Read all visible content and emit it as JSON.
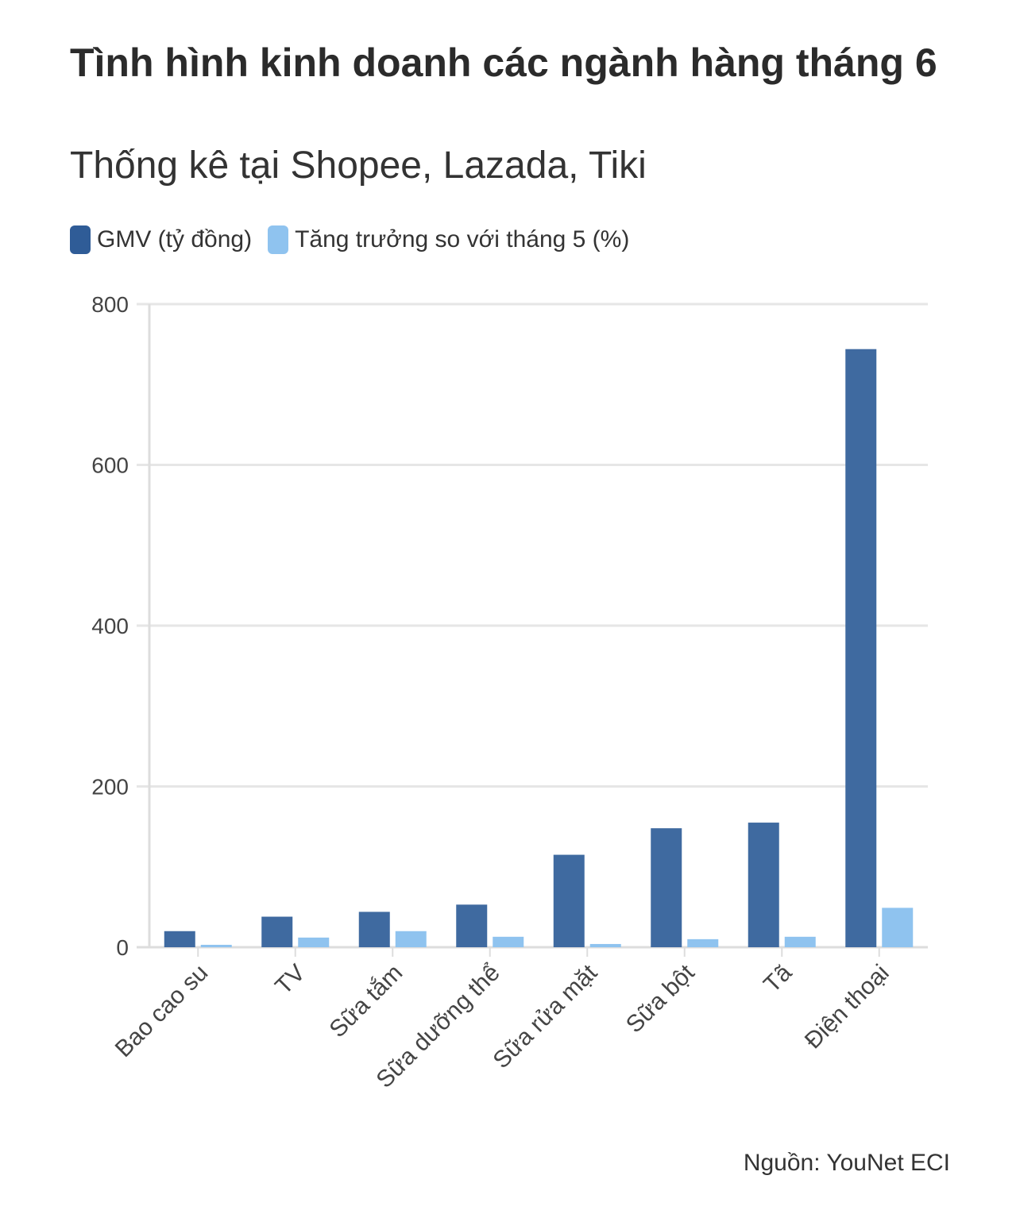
{
  "colors": {
    "gmv": "#3f6aa0",
    "growth": "#8fc3ef",
    "grid": "#e6e6e6",
    "axis": "#dddddd"
  },
  "chart_data": {
    "type": "bar",
    "title": "Tình hình kinh doanh các ngành hàng tháng 6",
    "subtitle": "Thống kê tại Shopee, Lazada, Tiki",
    "categories": [
      "Bao cao su",
      "TV",
      "Sữa tắm",
      "Sữa dưỡng thể",
      "Sữa rửa mặt",
      "Sữa bột",
      "Tã",
      "Điện thoại"
    ],
    "series": [
      {
        "name": "GMV (tỷ đồng)",
        "values": [
          20,
          38,
          44,
          53,
          115,
          148,
          155,
          744
        ]
      },
      {
        "name": "Tăng trưởng so với tháng 5 (%)",
        "values": [
          3,
          12,
          20,
          13,
          4,
          10,
          13,
          49
        ]
      }
    ],
    "yticks": [
      0,
      200,
      400,
      600,
      800
    ],
    "ylim": [
      0,
      800
    ],
    "grid": true,
    "legend": "top-left",
    "source": "Nguồn: YouNet ECI"
  }
}
